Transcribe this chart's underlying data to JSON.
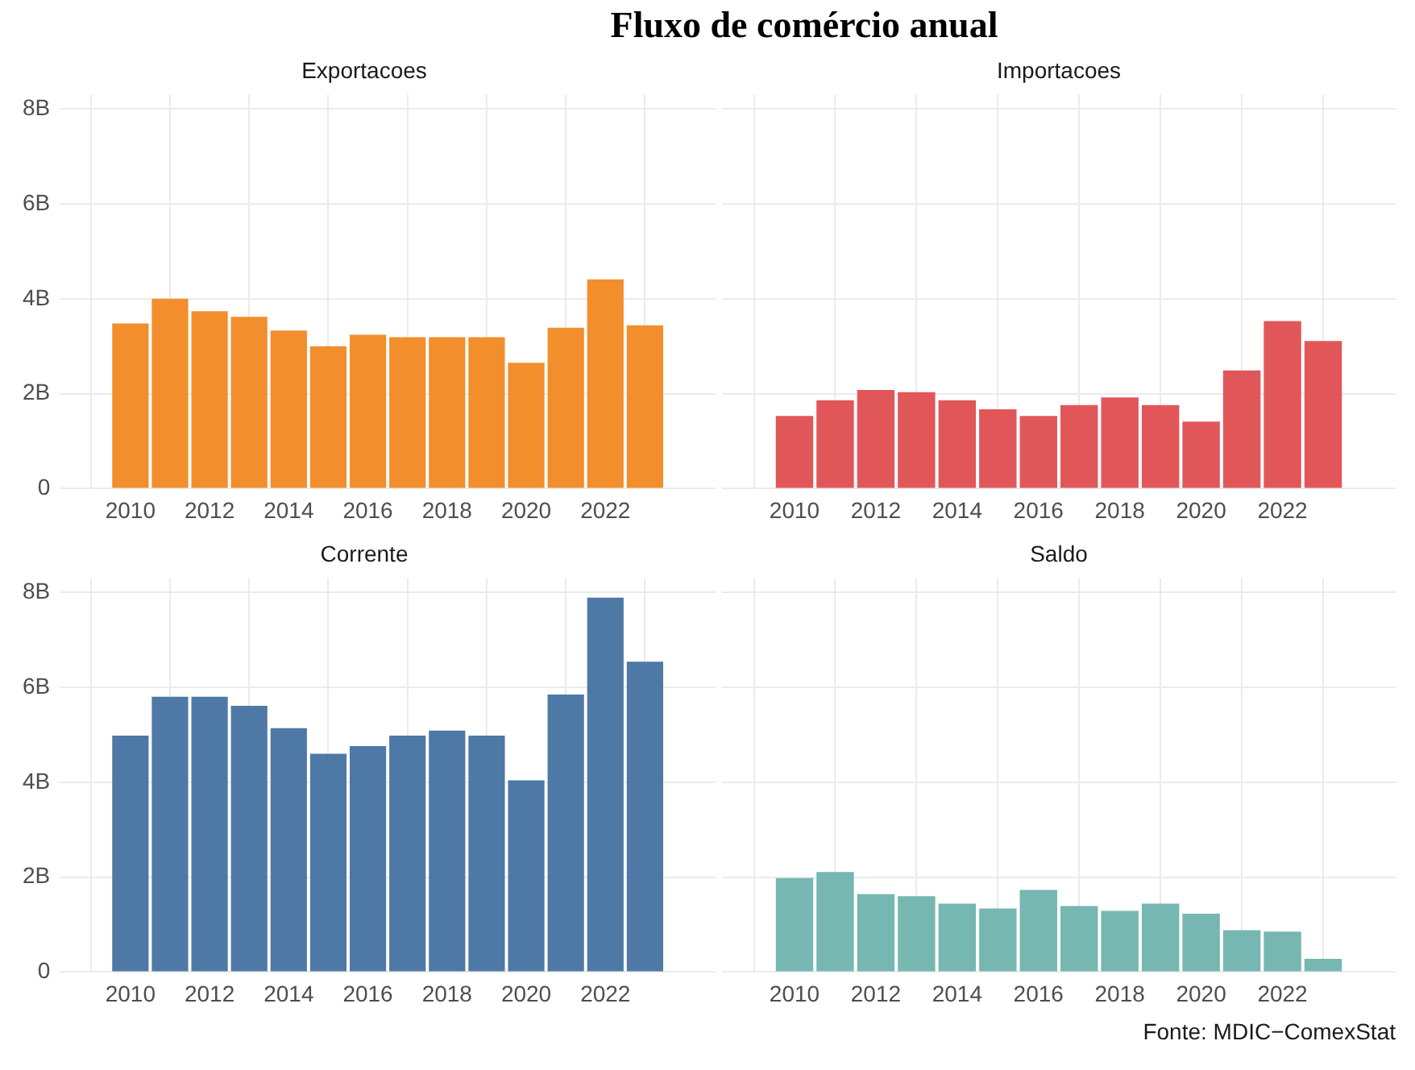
{
  "chart_data": [
    {
      "type": "other",
      "title": "Fluxo de comércio anual"
    },
    {
      "type": "bar",
      "title": "Exportacoes",
      "x": [
        2010,
        2011,
        2012,
        2013,
        2014,
        2015,
        2016,
        2017,
        2018,
        2019,
        2020,
        2021,
        2022,
        2023
      ],
      "values": [
        3.48,
        4.0,
        3.74,
        3.62,
        3.33,
        3.0,
        3.24,
        3.19,
        3.19,
        3.19,
        2.65,
        3.39,
        4.41,
        3.44
      ],
      "color": "#f28e2b",
      "xlim": [
        2009.4,
        2023.6
      ],
      "xticks": [
        2010,
        2012,
        2014,
        2016,
        2018,
        2020,
        2022
      ],
      "ylim": [
        0,
        8.3
      ],
      "yticks": [
        0,
        {
          "value": 2,
          "label": "2B"
        },
        {
          "value": 4,
          "label": "4B"
        },
        {
          "value": 6,
          "label": "6B"
        },
        {
          "value": 8,
          "label": "8B"
        }
      ],
      "grid": true
    },
    {
      "type": "bar",
      "title": "Importacoes",
      "x": [
        2010,
        2011,
        2012,
        2013,
        2014,
        2015,
        2016,
        2017,
        2018,
        2019,
        2020,
        2021,
        2022,
        2023
      ],
      "values": [
        1.53,
        1.86,
        2.08,
        2.03,
        1.86,
        1.67,
        1.53,
        1.76,
        1.92,
        1.76,
        1.41,
        2.49,
        3.53,
        3.11
      ],
      "color": "#e15759",
      "xlim": [
        2009.4,
        2023.6
      ],
      "xticks": [
        2010,
        2012,
        2014,
        2016,
        2018,
        2020,
        2022
      ],
      "ylim": [
        0,
        8.3
      ],
      "yticks": [
        {
          "value": 0,
          "label": null
        },
        {
          "value": 2,
          "label": null
        },
        {
          "value": 4,
          "label": null
        },
        {
          "value": 6,
          "label": null
        },
        {
          "value": 8,
          "label": null
        }
      ],
      "grid": true,
      "tick_labels": "x"
    },
    {
      "type": "bar",
      "title": "Corrente",
      "x": [
        2010,
        2011,
        2012,
        2013,
        2014,
        2015,
        2016,
        2017,
        2018,
        2019,
        2020,
        2021,
        2022,
        2023
      ],
      "values": [
        4.98,
        5.8,
        5.8,
        5.61,
        5.14,
        4.6,
        4.76,
        4.98,
        5.09,
        4.98,
        4.04,
        5.85,
        7.89,
        6.54
      ],
      "color": "#4e79a7",
      "xlim": [
        2009.4,
        2023.6
      ],
      "xticks": [
        2010,
        2012,
        2014,
        2016,
        2018,
        2020,
        2022
      ],
      "ylim": [
        0,
        8.3
      ],
      "yticks": [
        0,
        {
          "value": 2,
          "label": "2B"
        },
        {
          "value": 4,
          "label": "4B"
        },
        {
          "value": 6,
          "label": "6B"
        },
        {
          "value": 8,
          "label": "8B"
        }
      ],
      "grid": true
    },
    {
      "type": "bar",
      "title": "Saldo",
      "x": [
        2010,
        2011,
        2012,
        2013,
        2014,
        2015,
        2016,
        2017,
        2018,
        2019,
        2020,
        2021,
        2022,
        2023
      ],
      "values": [
        1.98,
        2.11,
        1.64,
        1.6,
        1.44,
        1.34,
        1.73,
        1.39,
        1.29,
        1.44,
        1.23,
        0.88,
        0.85,
        0.28
      ],
      "color": "#76b7b2",
      "xlim": [
        2009.4,
        2023.6
      ],
      "xticks": [
        2010,
        2012,
        2014,
        2016,
        2018,
        2020,
        2022
      ],
      "ylim": [
        0,
        8.3
      ],
      "yticks": [
        {
          "value": 0,
          "label": null
        },
        {
          "value": 2,
          "label": null
        },
        {
          "value": 4,
          "label": null
        },
        {
          "value": 6,
          "label": null
        },
        {
          "value": 8,
          "label": null
        }
      ],
      "grid": true,
      "tick_labels": "x",
      "annotations": [
        "Fonte: MDIC−ComexStat"
      ]
    }
  ]
}
